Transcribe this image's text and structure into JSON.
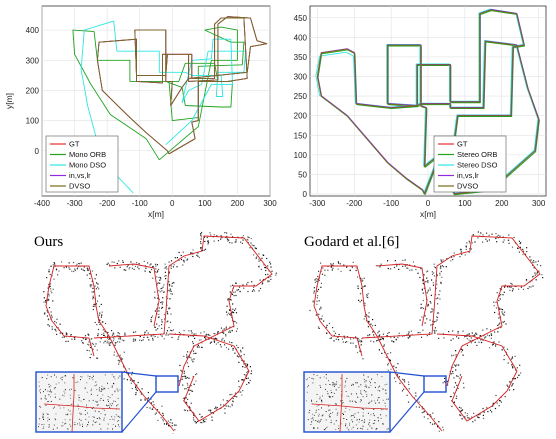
{
  "chart_data": [
    {
      "type": "line",
      "xlabel": "x[m]",
      "ylabel": "y[m]",
      "xlim": [
        -400,
        300
      ],
      "ylim": [
        -150,
        480
      ],
      "xticks": [
        "-400",
        "-300",
        "-200",
        "-100",
        "0",
        "100",
        "200",
        "300"
      ],
      "yticks": [
        "0",
        "100",
        "200",
        "300",
        "400"
      ],
      "grid": true,
      "legend_position": "bottom-left",
      "series": [
        {
          "name": "GT",
          "color": "#e8302a",
          "x": [
            -10,
            -15,
            -80,
            -130,
            -215,
            -230,
            -225,
            -110,
            -110,
            -30,
            -30,
            50,
            50,
            140,
            140,
            170,
            240,
            260,
            290,
            240,
            230,
            50,
            30,
            -5,
            0,
            -20,
            -20,
            -115,
            -110,
            -20,
            -15,
            60,
            60,
            130,
            130,
            150,
            220,
            230,
            170,
            160,
            80,
            80,
            60,
            70,
            -10
          ],
          "y": [
            -10,
            0,
            60,
            110,
            200,
            300,
            360,
            370,
            230,
            225,
            320,
            320,
            230,
            235,
            420,
            445,
            440,
            365,
            355,
            345,
            260,
            240,
            210,
            150,
            230,
            230,
            400,
            400,
            250,
            250,
            320,
            320,
            240,
            240,
            420,
            440,
            440,
            240,
            230,
            230,
            230,
            100,
            95,
            40,
            -10
          ]
        },
        {
          "name": "Mono ORB",
          "color": "#1fa31f",
          "x": [
            -40,
            -80,
            -190,
            -250,
            -300,
            -305,
            -240,
            -230,
            -130,
            -130,
            -20,
            30,
            40,
            150,
            180,
            185,
            140,
            130,
            40,
            20,
            -10,
            0,
            80,
            80,
            215,
            220,
            180,
            100,
            150,
            200,
            200,
            120,
            80,
            -40
          ],
          "y": [
            -30,
            40,
            120,
            220,
            320,
            400,
            395,
            300,
            300,
            230,
            230,
            210,
            150,
            145,
            145,
            230,
            230,
            290,
            290,
            230,
            230,
            100,
            110,
            280,
            285,
            360,
            360,
            400,
            410,
            400,
            300,
            300,
            80,
            -30
          ]
        },
        {
          "name": "Mono DSO",
          "color": "#2ee6e0",
          "x": [
            -120,
            -190,
            -235,
            -260,
            -280,
            -270,
            -180,
            -170,
            -40,
            -40,
            40,
            60,
            150,
            155,
            135,
            140,
            220,
            225,
            110,
            90,
            50,
            30,
            60,
            120,
            125,
            180,
            185,
            120,
            60,
            -20
          ],
          "y": [
            -140,
            -60,
            50,
            150,
            270,
            400,
            430,
            330,
            330,
            260,
            260,
            250,
            250,
            180,
            180,
            260,
            260,
            330,
            330,
            220,
            200,
            160,
            300,
            305,
            370,
            370,
            220,
            220,
            100,
            20
          ]
        },
        {
          "name": "in,vs,lr",
          "color": "#8a2be2",
          "x": [
            -10,
            -15,
            -80,
            -130,
            -215,
            -230,
            -225,
            -110,
            -110,
            -30,
            -30,
            50,
            50,
            140,
            140,
            170,
            240,
            260,
            290,
            240,
            230,
            50,
            30,
            -5,
            0,
            -20,
            -20,
            -115,
            -110,
            -20,
            -15,
            60,
            60,
            130,
            130,
            150,
            220,
            230,
            170,
            160,
            80,
            80,
            60,
            70,
            -10
          ],
          "y": [
            -10,
            0,
            60,
            110,
            200,
            300,
            360,
            370,
            230,
            225,
            320,
            320,
            230,
            235,
            420,
            445,
            440,
            365,
            355,
            345,
            260,
            240,
            210,
            150,
            230,
            230,
            400,
            400,
            250,
            250,
            320,
            320,
            240,
            240,
            420,
            440,
            440,
            240,
            230,
            230,
            230,
            100,
            95,
            40,
            -10
          ]
        },
        {
          "name": "DVSO",
          "color": "#7a6a1a",
          "x": [
            -10,
            -15,
            -80,
            -130,
            -215,
            -230,
            -225,
            -110,
            -110,
            -30,
            -30,
            50,
            50,
            140,
            140,
            170,
            240,
            260,
            290,
            240,
            230,
            50,
            30,
            -5,
            0,
            -20,
            -20,
            -115,
            -110,
            -20,
            -15,
            60,
            60,
            130,
            130,
            150,
            220,
            230,
            170,
            160,
            80,
            80,
            60,
            70,
            -10
          ],
          "y": [
            -10,
            0,
            60,
            110,
            200,
            300,
            360,
            370,
            230,
            225,
            320,
            320,
            230,
            235,
            420,
            445,
            440,
            365,
            355,
            345,
            260,
            240,
            210,
            150,
            230,
            230,
            400,
            400,
            250,
            250,
            320,
            320,
            240,
            240,
            420,
            440,
            440,
            240,
            230,
            230,
            230,
            100,
            95,
            40,
            -10
          ]
        }
      ]
    },
    {
      "type": "line",
      "xlabel": "x[m]",
      "ylabel": "",
      "xlim": [
        -320,
        320
      ],
      "ylim": [
        -5,
        480
      ],
      "xticks": [
        "-300",
        "-200",
        "-100",
        "0",
        "100",
        "200",
        "300"
      ],
      "yticks": [
        "0",
        "50",
        "100",
        "150",
        "200",
        "250",
        "300",
        "350",
        "400",
        "450"
      ],
      "grid": true,
      "legend_position": "bottom-right",
      "series": [
        {
          "name": "GT",
          "color": "#e8302a",
          "x": [
            -10,
            -15,
            -60,
            -110,
            -220,
            -290,
            -300,
            -290,
            -220,
            -200,
            -195,
            -100,
            -100,
            -30,
            -30,
            60,
            60,
            140,
            140,
            170,
            240,
            255,
            260,
            230,
            225,
            80,
            70,
            -10,
            -5,
            -20,
            -20,
            -110,
            -110,
            -30,
            -20,
            60,
            60,
            150,
            155,
            240,
            270,
            300,
            290,
            230,
            170,
            70,
            60,
            50,
            -10
          ],
          "y": [
            0,
            10,
            40,
            80,
            200,
            250,
            300,
            360,
            370,
            360,
            230,
            220,
            220,
            225,
            330,
            330,
            235,
            235,
            460,
            470,
            460,
            400,
            380,
            375,
            200,
            200,
            130,
            70,
            220,
            225,
            380,
            380,
            230,
            225,
            230,
            230,
            220,
            220,
            390,
            380,
            270,
            190,
            110,
            60,
            10,
            0,
            140,
            145,
            0
          ]
        },
        {
          "name": "Stereo ORB",
          "color": "#1fa31f",
          "x": [
            -8,
            -13,
            -58,
            -108,
            -218,
            -288,
            -298,
            -288,
            -218,
            -198,
            -193,
            -98,
            -98,
            -28,
            -28,
            62,
            62,
            142,
            142,
            172,
            242,
            257,
            262,
            232,
            227,
            82,
            72,
            -8,
            -3,
            -18,
            -18,
            -108,
            -108,
            -28,
            -18,
            62,
            62,
            152,
            157,
            242,
            272,
            302,
            292,
            232,
            172,
            72,
            62,
            52,
            -8
          ],
          "y": [
            -2,
            8,
            38,
            78,
            198,
            248,
            298,
            358,
            368,
            358,
            228,
            218,
            218,
            223,
            328,
            328,
            233,
            233,
            458,
            468,
            458,
            398,
            378,
            373,
            198,
            198,
            128,
            68,
            218,
            223,
            378,
            378,
            228,
            223,
            228,
            228,
            218,
            218,
            388,
            378,
            268,
            188,
            108,
            58,
            8,
            -2,
            138,
            143,
            -2
          ]
        },
        {
          "name": "Stereo DSO",
          "color": "#2ee6e0",
          "x": [
            -12,
            -17,
            -62,
            -112,
            -222,
            -294,
            -304,
            -294,
            -222,
            -202,
            -197,
            -102,
            -102,
            -32,
            -32,
            58,
            58,
            138,
            138,
            168,
            238,
            253,
            258,
            228,
            223,
            78,
            68,
            -12,
            -7,
            -22,
            -22,
            -112,
            -112,
            -32,
            -22,
            58,
            58,
            148,
            153,
            238,
            268,
            298,
            288,
            228,
            168,
            68,
            58,
            48,
            -12
          ],
          "y": [
            2,
            12,
            42,
            82,
            202,
            252,
            302,
            352,
            362,
            352,
            232,
            222,
            222,
            227,
            332,
            332,
            237,
            237,
            462,
            472,
            462,
            402,
            382,
            377,
            202,
            202,
            132,
            72,
            222,
            227,
            382,
            382,
            232,
            227,
            232,
            232,
            222,
            222,
            392,
            382,
            272,
            192,
            112,
            62,
            12,
            2,
            142,
            147,
            2
          ]
        },
        {
          "name": "in,vs,lr",
          "color": "#8a2be2",
          "x": [
            -9,
            -14,
            -59,
            -109,
            -219,
            -289,
            -299,
            -289,
            -219,
            -199,
            -194,
            -99,
            -99,
            -29,
            -29,
            61,
            61,
            141,
            141,
            171,
            241,
            256,
            261,
            231,
            226,
            81,
            71,
            -9,
            -4,
            -19,
            -19,
            -109,
            -109,
            -29,
            -19,
            61,
            61,
            151,
            156,
            241,
            271,
            301,
            291,
            231,
            171,
            71,
            61,
            51,
            -9
          ],
          "y": [
            1,
            11,
            41,
            81,
            201,
            251,
            301,
            361,
            371,
            361,
            231,
            221,
            221,
            226,
            331,
            331,
            236,
            236,
            461,
            471,
            461,
            401,
            381,
            376,
            201,
            201,
            131,
            71,
            221,
            226,
            381,
            381,
            231,
            226,
            231,
            231,
            221,
            221,
            391,
            381,
            271,
            191,
            111,
            61,
            11,
            1,
            141,
            146,
            1
          ]
        },
        {
          "name": "DVSO",
          "color": "#7a6a1a",
          "x": [
            -10,
            -15,
            -60,
            -110,
            -220,
            -290,
            -300,
            -290,
            -220,
            -200,
            -195,
            -100,
            -100,
            -30,
            -30,
            60,
            60,
            140,
            140,
            170,
            240,
            255,
            260,
            230,
            225,
            80,
            70,
            -10,
            -5,
            -20,
            -20,
            -110,
            -110,
            -30,
            -20,
            60,
            60,
            150,
            155,
            240,
            270,
            300,
            290,
            230,
            170,
            70,
            60,
            50,
            -10
          ],
          "y": [
            0,
            10,
            40,
            80,
            200,
            250,
            300,
            360,
            370,
            360,
            230,
            220,
            220,
            225,
            330,
            330,
            235,
            235,
            460,
            470,
            460,
            400,
            380,
            375,
            200,
            200,
            130,
            70,
            220,
            225,
            380,
            380,
            230,
            225,
            230,
            230,
            220,
            220,
            390,
            380,
            270,
            190,
            110,
            60,
            10,
            0,
            140,
            145,
            0
          ]
        }
      ]
    }
  ],
  "maps": [
    {
      "title": "Ours"
    },
    {
      "title": "Godard et al.[6]"
    }
  ]
}
